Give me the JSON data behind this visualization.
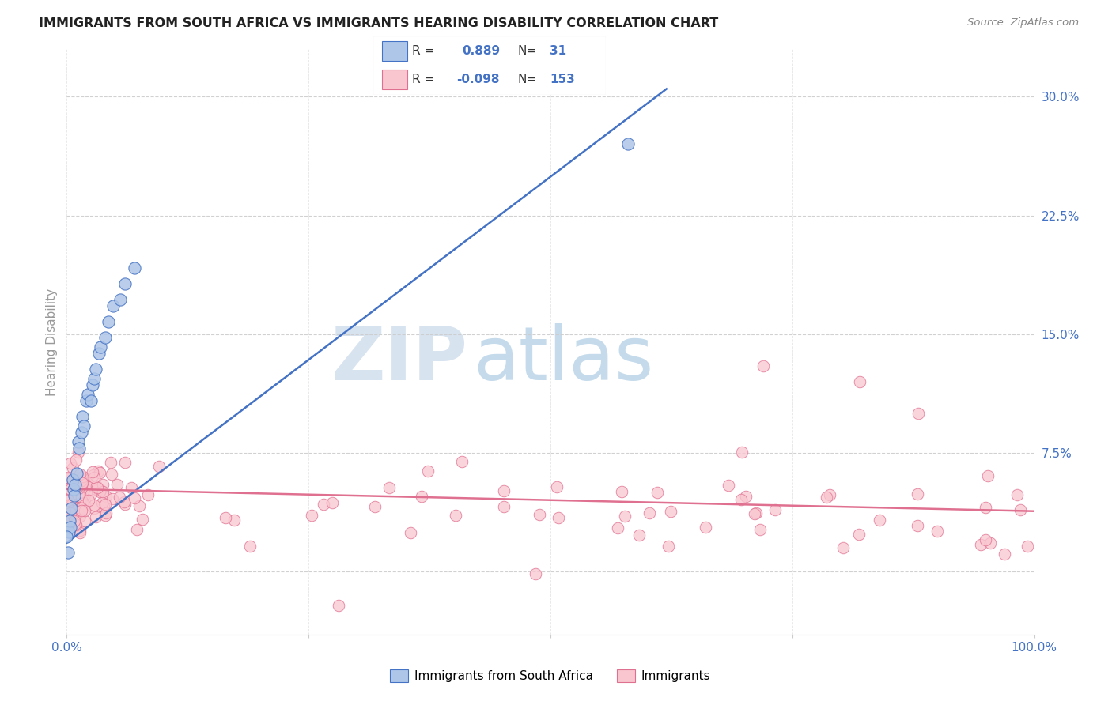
{
  "title": "IMMIGRANTS FROM SOUTH AFRICA VS IMMIGRANTS HEARING DISABILITY CORRELATION CHART",
  "source": "Source: ZipAtlas.com",
  "ylabel": "Hearing Disability",
  "watermark_zip": "ZIP",
  "watermark_atlas": "atlas",
  "legend_label_blue": "Immigrants from South Africa",
  "legend_label_pink": "Immigrants",
  "blue_color": "#aec6e8",
  "blue_edge_color": "#4472c4",
  "pink_color": "#f9c6d0",
  "pink_edge_color": "#e07090",
  "blue_line_color": "#4472c4",
  "pink_line_color": "#e07090",
  "text_blue": "#4472c4",
  "yticks": [
    0.0,
    0.075,
    0.15,
    0.225,
    0.3
  ],
  "ytick_labels": [
    "",
    "7.5%",
    "15.0%",
    "22.5%",
    "30.0%"
  ],
  "xlim": [
    0.0,
    1.0
  ],
  "ylim": [
    -0.04,
    0.33
  ],
  "blue_scatter_x": [
    0.002,
    0.003,
    0.005,
    0.006,
    0.007,
    0.008,
    0.009,
    0.01,
    0.012,
    0.013,
    0.015,
    0.016,
    0.018,
    0.02,
    0.022,
    0.025,
    0.027,
    0.028,
    0.03,
    0.033,
    0.035,
    0.04,
    0.043,
    0.048,
    0.055,
    0.06,
    0.07,
    0.004,
    0.0,
    0.001,
    0.58
  ],
  "blue_scatter_y": [
    0.025,
    0.032,
    0.04,
    0.058,
    0.052,
    0.048,
    0.055,
    0.062,
    0.082,
    0.078,
    0.088,
    0.098,
    0.092,
    0.108,
    0.112,
    0.108,
    0.118,
    0.122,
    0.128,
    0.138,
    0.142,
    0.148,
    0.158,
    0.168,
    0.172,
    0.182,
    0.192,
    0.028,
    0.022,
    0.012,
    0.27
  ],
  "blue_line_x0": 0.0,
  "blue_line_y0": 0.018,
  "blue_line_x1": 0.62,
  "blue_line_y1": 0.305,
  "pink_line_x0": 0.0,
  "pink_line_y0": 0.052,
  "pink_line_x1": 1.0,
  "pink_line_y1": 0.038
}
